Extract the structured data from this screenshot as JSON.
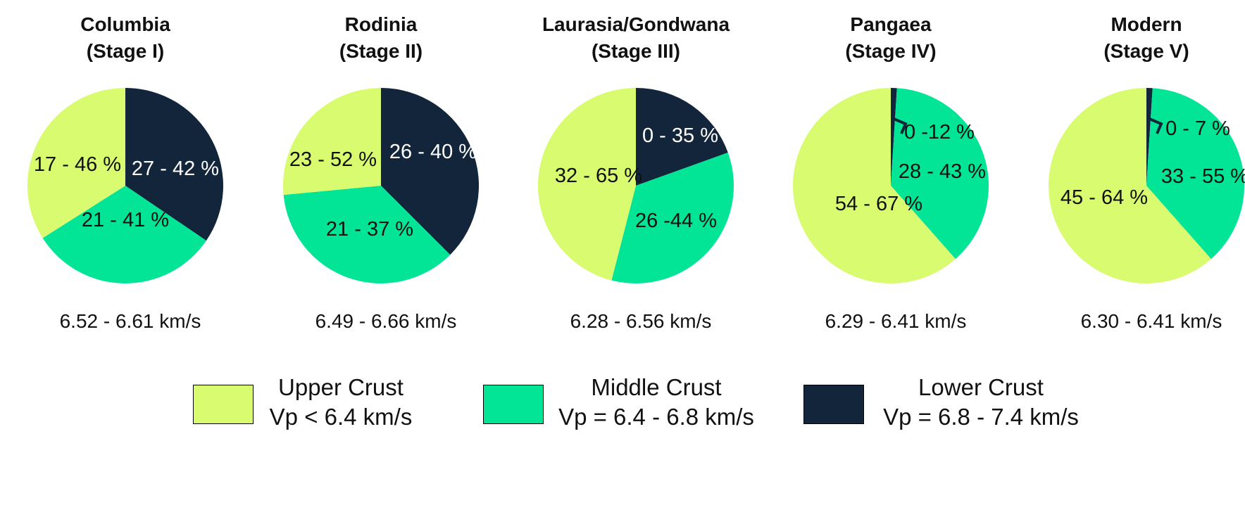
{
  "colors": {
    "upper": "#d9fb6f",
    "middle": "#02e596",
    "lower": "#12253a",
    "text_dark": "#111111",
    "text_light": "#ffffff"
  },
  "chart_data": [
    {
      "type": "pie",
      "title": "Columbia",
      "subtitle": "(Stage I)",
      "velocity": "6.52 - 6.61 km/s",
      "slices": [
        {
          "name": "Lower Crust",
          "value": 34.5,
          "label": "27 - 42 %"
        },
        {
          "name": "Middle Crust",
          "value": 31.5,
          "label": "21 - 41 %"
        },
        {
          "name": "Upper Crust",
          "value": 34.0,
          "label": "17 - 46 %"
        }
      ]
    },
    {
      "type": "pie",
      "title": "Rodinia",
      "subtitle": "(Stage II)",
      "velocity": "6.49 - 6.66 km/s",
      "slices": [
        {
          "name": "Lower Crust",
          "value": 37.5,
          "label": "26 - 40 %"
        },
        {
          "name": "Middle Crust",
          "value": 36.0,
          "label": "21 - 37 %"
        },
        {
          "name": "Upper Crust",
          "value": 26.5,
          "label": "23 - 52 %"
        }
      ]
    },
    {
      "type": "pie",
      "title": "Laurasia/Gondwana",
      "subtitle": "(Stage III)",
      "velocity": "6.28 - 6.56 km/s",
      "slices": [
        {
          "name": "Lower Crust",
          "value": 19.5,
          "label": "0 - 35 %"
        },
        {
          "name": "Middle Crust",
          "value": 34.5,
          "label": "26 -44 %"
        },
        {
          "name": "Upper Crust",
          "value": 46.0,
          "label": "32 - 65 %"
        }
      ]
    },
    {
      "type": "pie",
      "title": "Pangaea",
      "subtitle": "(Stage IV)",
      "velocity": "6.29 - 6.41 km/s",
      "slices": [
        {
          "name": "Lower Crust",
          "value": 1.0,
          "label": "0 -12 %"
        },
        {
          "name": "Middle Crust",
          "value": 37.5,
          "label": "28 - 43 %"
        },
        {
          "name": "Upper Crust",
          "value": 61.5,
          "label": "54 - 67 %"
        }
      ]
    },
    {
      "type": "pie",
      "title": "Modern",
      "subtitle": "(Stage V)",
      "velocity": "6.30 - 6.41 km/s",
      "slices": [
        {
          "name": "Lower Crust",
          "value": 1.0,
          "label": "0 - 7 %"
        },
        {
          "name": "Middle Crust",
          "value": 37.5,
          "label": "33 - 55 %"
        },
        {
          "name": "Upper Crust",
          "value": 61.5,
          "label": "45 - 64 %"
        }
      ]
    }
  ],
  "legend": [
    {
      "name": "Upper Crust",
      "range": "Vp < 6.4 km/s",
      "color_key": "upper"
    },
    {
      "name": "Middle Crust",
      "range": "Vp = 6.4 - 6.8 km/s",
      "color_key": "middle"
    },
    {
      "name": "Lower Crust",
      "range": "Vp = 6.8 - 7.4 km/s",
      "color_key": "lower"
    }
  ]
}
